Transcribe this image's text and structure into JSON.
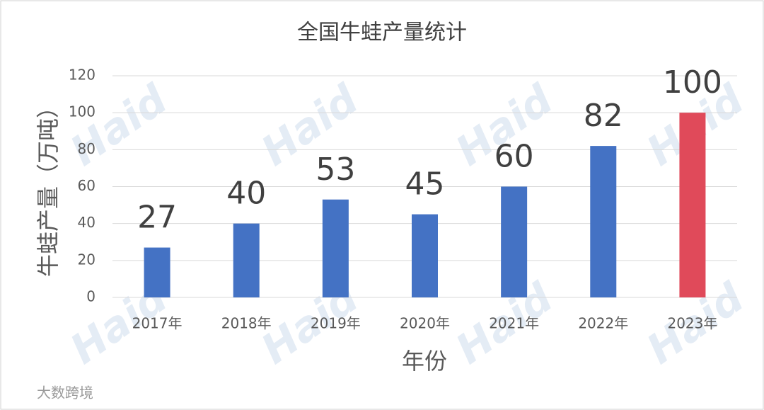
{
  "chart_data": {
    "type": "bar",
    "title": "全国牛蛙产量统计",
    "x_label": "年份",
    "y_label": "牛蛙产量（万吨）",
    "categories": [
      "2017年",
      "2018年",
      "2019年",
      "2020年",
      "2021年",
      "2022年",
      "2023年"
    ],
    "values": [
      27,
      40,
      53,
      45,
      60,
      82,
      100
    ],
    "colors": [
      "#4472c4",
      "#4472c4",
      "#4472c4",
      "#4472c4",
      "#4472c4",
      "#4472c4",
      "#e04a5a"
    ],
    "ylim": [
      0,
      120
    ],
    "yticks": [
      0,
      20,
      40,
      60,
      80,
      100,
      120
    ],
    "grid": true,
    "logo_watermark": "Haid",
    "source_watermark": "大数跨境"
  }
}
